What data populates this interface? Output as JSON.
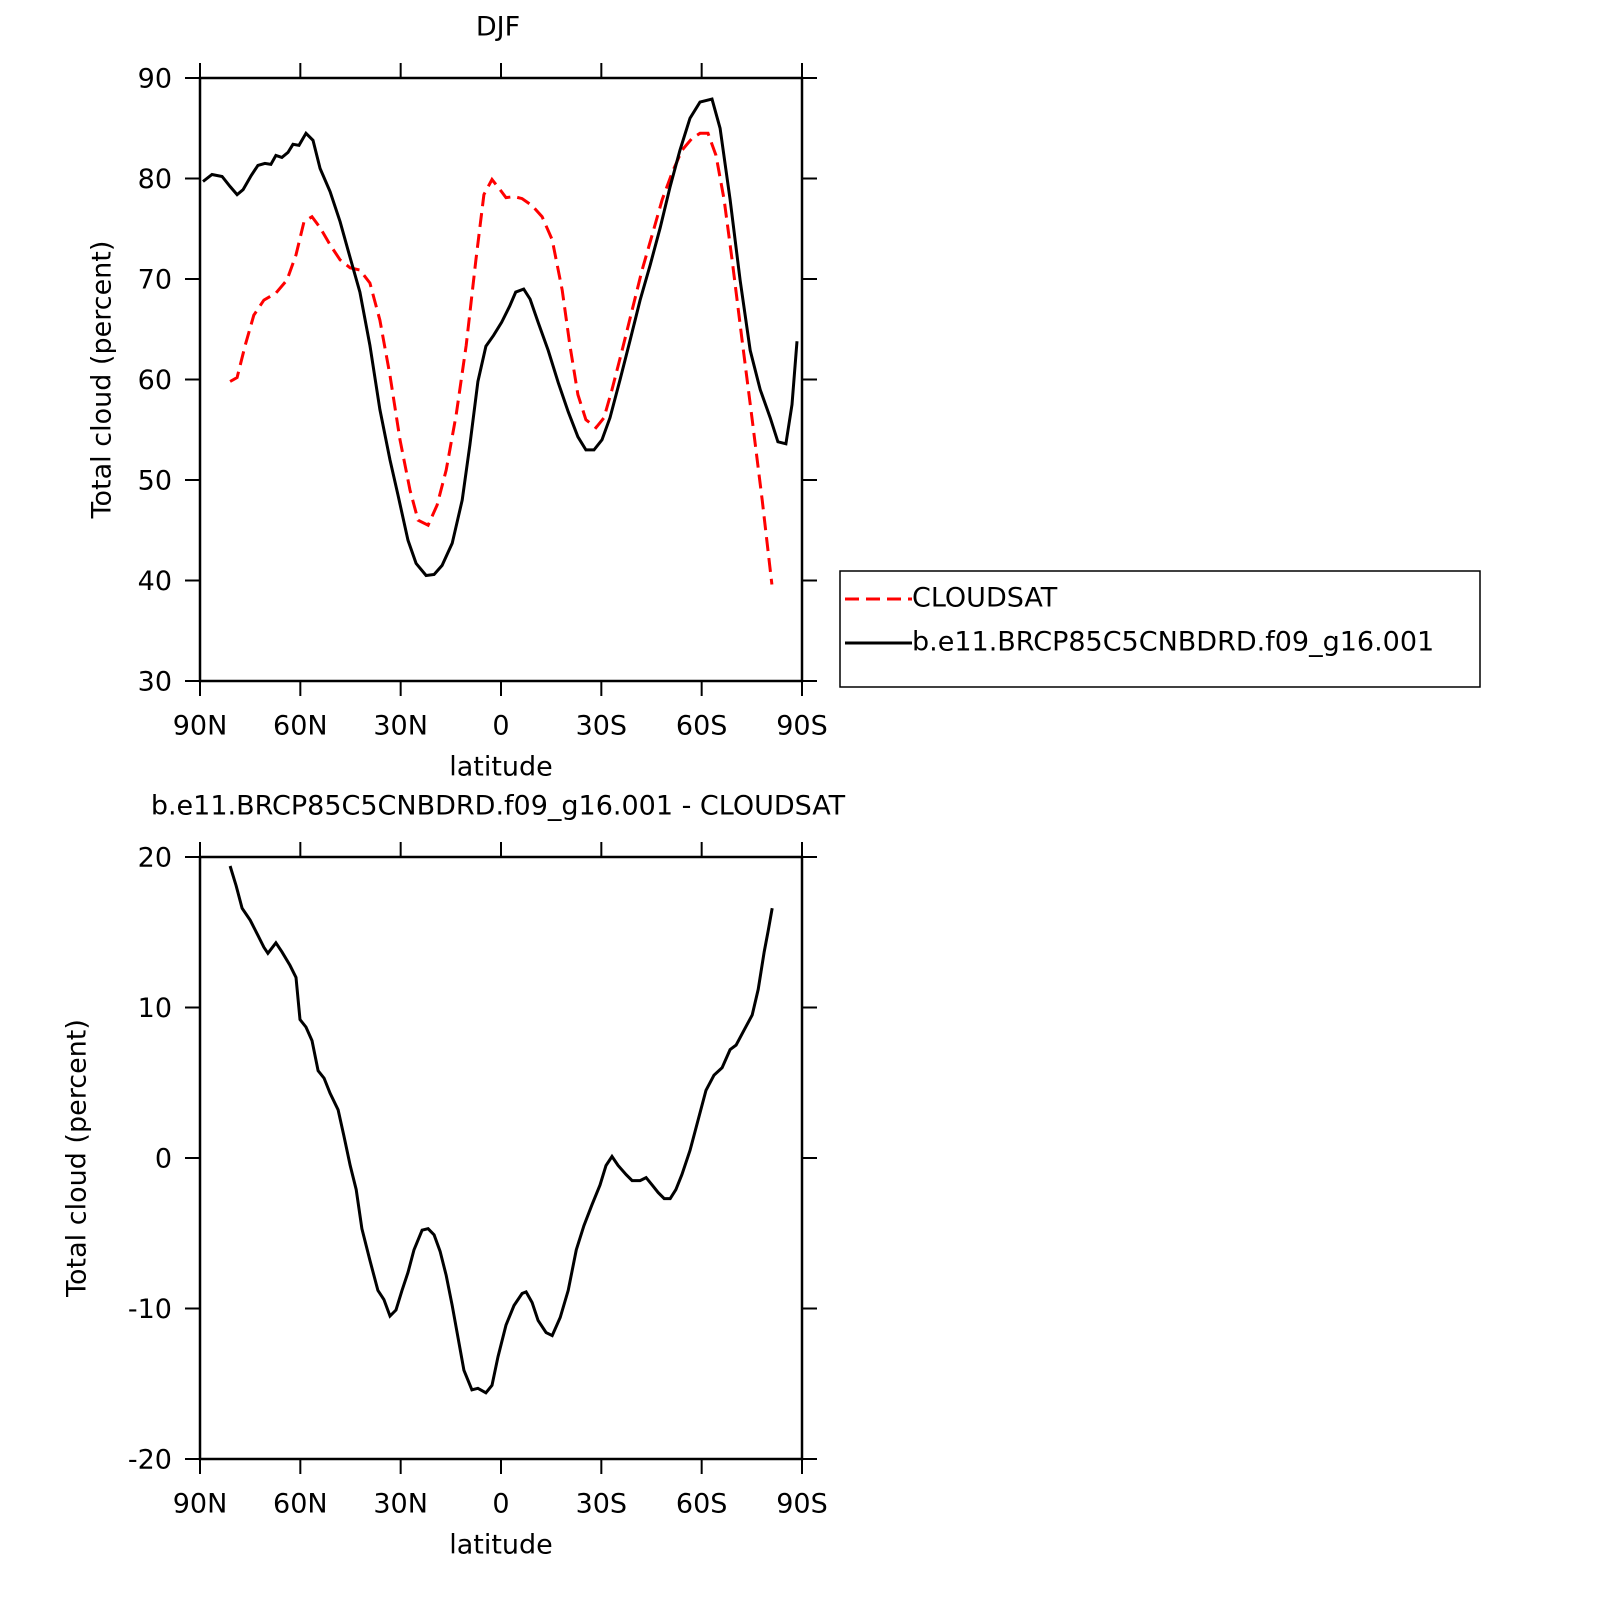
{
  "chart_data": [
    {
      "type": "line",
      "title": "DJF",
      "xlabel": "latitude",
      "ylabel": "Total cloud (percent)",
      "xlim": [
        90,
        -90
      ],
      "ylim": [
        30,
        90
      ],
      "xticks": [
        {
          "value": 90,
          "label": "90N"
        },
        {
          "value": 60,
          "label": "60N"
        },
        {
          "value": 30,
          "label": "30N"
        },
        0,
        {
          "value": -30,
          "label": "30S"
        },
        {
          "value": -60,
          "label": "60S"
        },
        {
          "value": -90,
          "label": "90S"
        }
      ],
      "yticks": [
        30,
        40,
        50,
        60,
        70,
        80,
        90
      ],
      "legend": "right",
      "series": [
        {
          "name": "CLOUDSAT",
          "color": "#ff0000",
          "dash": true,
          "x": [
            81.0,
            78.9,
            76.5,
            73.9,
            70.9,
            67.3,
            64.0,
            61.3,
            58.9,
            56.5,
            54.1,
            51.1,
            48.1,
            45.1,
            42.2,
            39.2,
            36.2,
            33.2,
            30.2,
            27.2,
            24.8,
            21.8,
            19.1,
            16.4,
            13.4,
            10.4,
            7.5,
            5.1,
            2.7,
            0.3,
            -1.5,
            -3.9,
            -6.3,
            -9.3,
            -12.3,
            -15.3,
            -18.3,
            -20.6,
            -23.0,
            -25.4,
            -28.4,
            -30.8,
            -33.2,
            -36.2,
            -39.2,
            -42.2,
            -45.2,
            -48.2,
            -51.2,
            -54.1,
            -57.1,
            -59.5,
            -61.9,
            -64.3,
            -66.7,
            -69.1,
            -72.1,
            -75.1,
            -78.1,
            -81.0
          ],
          "values": [
            59.8,
            60.2,
            63.4,
            66.4,
            67.9,
            68.6,
            69.9,
            72.4,
            75.7,
            76.2,
            75.1,
            73.4,
            71.9,
            71.1,
            70.9,
            69.6,
            65.9,
            60.4,
            54.0,
            49.0,
            46.0,
            45.5,
            47.5,
            51.0,
            56.5,
            63.4,
            71.9,
            78.4,
            79.9,
            78.9,
            78.1,
            78.2,
            78.0,
            77.3,
            76.2,
            73.9,
            68.9,
            63.4,
            58.5,
            56.0,
            55.2,
            56.2,
            59.0,
            62.9,
            66.9,
            70.9,
            74.4,
            77.9,
            80.6,
            82.8,
            84.0,
            84.5,
            84.5,
            82.3,
            77.9,
            71.9,
            63.9,
            56.0,
            48.0,
            39.6
          ]
        },
        {
          "name": "b.e11.BRCP85C5CNBDRD.f09_g16.001",
          "color": "#000000",
          "dash": false,
          "x": [
            89.1,
            86.4,
            83.4,
            81.0,
            78.9,
            77.1,
            74.7,
            72.7,
            70.6,
            68.8,
            67.3,
            65.5,
            63.7,
            62.2,
            60.4,
            58.3,
            56.2,
            54.1,
            51.1,
            48.1,
            45.1,
            42.2,
            39.2,
            36.2,
            33.2,
            30.8,
            27.8,
            25.4,
            22.4,
            20.0,
            17.6,
            14.6,
            11.6,
            9.3,
            6.9,
            4.5,
            2.2,
            -0.2,
            -2.6,
            -4.4,
            -6.8,
            -8.7,
            -11.1,
            -14.1,
            -17.1,
            -20.1,
            -23.0,
            -25.4,
            -27.8,
            -30.2,
            -32.6,
            -35.6,
            -38.6,
            -41.6,
            -44.6,
            -47.6,
            -50.5,
            -53.5,
            -56.5,
            -59.5,
            -63.1,
            -65.5,
            -68.5,
            -71.5,
            -74.5,
            -77.5,
            -80.5,
            -82.8,
            -85.2,
            -87.0,
            -88.5
          ],
          "values": [
            79.7,
            80.4,
            80.2,
            79.2,
            78.4,
            78.9,
            80.3,
            81.3,
            81.5,
            81.4,
            82.3,
            82.1,
            82.6,
            83.4,
            83.3,
            84.5,
            83.8,
            81.0,
            78.7,
            75.7,
            72.1,
            68.7,
            63.4,
            57.0,
            52.0,
            48.5,
            44.0,
            41.7,
            40.5,
            40.6,
            41.5,
            43.7,
            48.0,
            53.5,
            59.8,
            63.3,
            64.4,
            65.7,
            67.3,
            68.7,
            69.0,
            68.0,
            65.7,
            62.9,
            59.7,
            56.8,
            54.3,
            53.0,
            53.0,
            54.0,
            56.2,
            60.0,
            63.9,
            67.9,
            71.4,
            75.1,
            79.1,
            82.8,
            86.0,
            87.6,
            87.9,
            85.0,
            77.9,
            69.9,
            62.9,
            59.0,
            56.2,
            53.8,
            53.6,
            57.5,
            63.8
          ]
        }
      ]
    },
    {
      "type": "line",
      "title": "b.e11.BRCP85C5CNBDRD.f09_g16.001 - CLOUDSAT",
      "xlabel": "latitude",
      "ylabel": "Total cloud (percent)",
      "xlim": [
        90,
        -90
      ],
      "ylim": [
        -20,
        20
      ],
      "xticks": [
        {
          "value": 90,
          "label": "90N"
        },
        {
          "value": 60,
          "label": "60N"
        },
        {
          "value": 30,
          "label": "30N"
        },
        0,
        {
          "value": -30,
          "label": "30S"
        },
        {
          "value": -60,
          "label": "60S"
        },
        {
          "value": -90,
          "label": "90S"
        }
      ],
      "yticks": [
        -20,
        -10,
        0,
        10,
        20
      ],
      "series": [
        {
          "color": "#000000",
          "dash": false,
          "x": [
            81.0,
            79.2,
            77.4,
            75.0,
            72.7,
            70.9,
            69.7,
            67.3,
            65.5,
            63.1,
            61.3,
            60.1,
            58.3,
            56.5,
            54.7,
            52.9,
            51.1,
            48.7,
            47.0,
            45.1,
            43.3,
            41.6,
            39.2,
            36.8,
            35.0,
            33.2,
            31.4,
            29.6,
            27.8,
            26.0,
            23.6,
            21.8,
            20.0,
            18.2,
            16.4,
            14.6,
            12.8,
            11.1,
            8.7,
            6.9,
            4.5,
            2.7,
            0.9,
            -1.5,
            -3.9,
            -6.3,
            -7.5,
            -9.3,
            -11.1,
            -13.5,
            -15.3,
            -17.7,
            -20.1,
            -22.5,
            -24.8,
            -27.2,
            -29.6,
            -31.4,
            -33.2,
            -35.0,
            -37.4,
            -39.2,
            -41.6,
            -43.4,
            -45.2,
            -47.0,
            -48.8,
            -50.6,
            -52.3,
            -54.1,
            -56.5,
            -58.9,
            -61.3,
            -63.7,
            -66.1,
            -68.5,
            -70.3,
            -72.7,
            -75.1,
            -76.9,
            -78.7,
            -79.9,
            -81.1
          ],
          "values": [
            19.4,
            18.1,
            16.6,
            15.8,
            14.8,
            14.0,
            13.6,
            14.3,
            13.7,
            12.8,
            12.0,
            9.2,
            8.7,
            7.8,
            5.8,
            5.3,
            4.3,
            3.2,
            1.5,
            -0.5,
            -2.1,
            -4.7,
            -6.8,
            -8.8,
            -9.4,
            -10.5,
            -10.1,
            -8.8,
            -7.6,
            -6.1,
            -4.8,
            -4.7,
            -5.1,
            -6.2,
            -7.8,
            -9.8,
            -12.0,
            -14.1,
            -15.4,
            -15.3,
            -15.6,
            -15.1,
            -13.2,
            -11.1,
            -9.8,
            -9.0,
            -8.9,
            -9.6,
            -10.8,
            -11.6,
            -11.8,
            -10.6,
            -8.8,
            -6.1,
            -4.5,
            -3.1,
            -1.8,
            -0.5,
            0.1,
            -0.5,
            -1.1,
            -1.5,
            -1.5,
            -1.3,
            -1.8,
            -2.3,
            -2.7,
            -2.7,
            -2.1,
            -1.1,
            0.5,
            2.5,
            4.5,
            5.5,
            6.0,
            7.2,
            7.5,
            8.5,
            9.5,
            11.2,
            13.7,
            15.1,
            16.6
          ]
        }
      ]
    }
  ]
}
